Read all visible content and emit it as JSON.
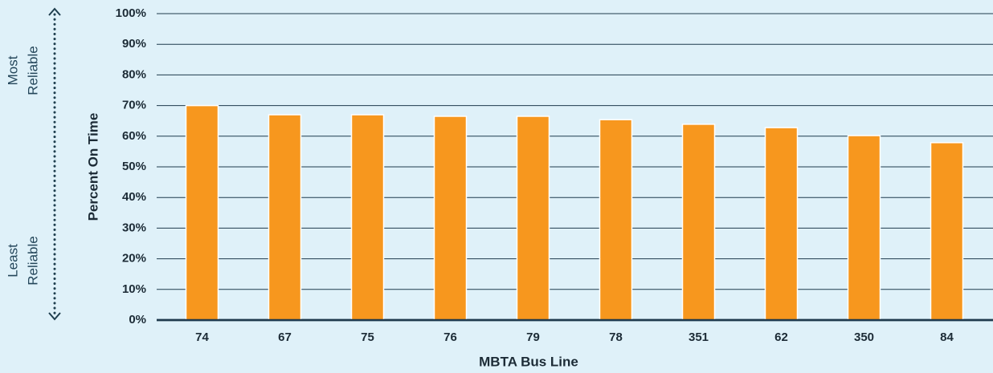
{
  "chart_data": {
    "type": "bar",
    "xlabel": "MBTA Bus Line",
    "ylabel": "Percent On Time",
    "annotations": [
      [
        "Most",
        "Reliable"
      ],
      [
        "Least",
        "Reliable"
      ]
    ],
    "categories": [
      "74",
      "67",
      "75",
      "76",
      "79",
      "78",
      "351",
      "62",
      "350",
      "84"
    ],
    "values": [
      70,
      67,
      67,
      66.5,
      66.5,
      65.4,
      63.9,
      62.8,
      60.2,
      57.9
    ],
    "color": "#f7971e",
    "ylim": [
      0,
      100
    ],
    "yticks": [
      {
        "value": 0,
        "label": "0%"
      },
      {
        "value": 10,
        "label": "10%"
      },
      {
        "value": 20,
        "label": "20%"
      },
      {
        "value": 30,
        "label": "30%"
      },
      {
        "value": 40,
        "label": "40%"
      },
      {
        "value": 50,
        "label": "50%"
      },
      {
        "value": 60,
        "label": "60%"
      },
      {
        "value": 70,
        "label": "70%"
      },
      {
        "value": 80,
        "label": "80%"
      },
      {
        "value": 90,
        "label": "90%"
      },
      {
        "value": 100,
        "label": "100%"
      }
    ],
    "grid": true
  }
}
